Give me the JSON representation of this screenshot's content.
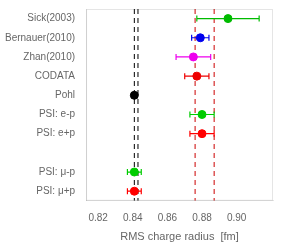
{
  "chart_data": {
    "type": "scatter",
    "orientation": "horizontal",
    "categories": [
      "Sick(2003)",
      "Bernauer(2010)",
      "Zhan(2010)",
      "CODATA",
      "Pohl",
      "PSI: e-p",
      "PSI: e+p",
      null,
      "PSI: μ-p",
      "PSI: μ+p"
    ],
    "values": [
      0.895,
      0.879,
      0.875,
      0.877,
      0.8409,
      0.88,
      0.88,
      null,
      0.8409,
      0.8409
    ],
    "error_low": [
      0.018,
      0.005,
      0.01,
      0.007,
      0.0015,
      0.007,
      0.007,
      null,
      0.004,
      0.004
    ],
    "error_high": [
      0.018,
      0.005,
      0.01,
      0.007,
      0.0015,
      0.007,
      0.007,
      null,
      0.004,
      0.004
    ],
    "colors": [
      "#00bb00",
      "#0000ee",
      "#ee00ee",
      "#ee0000",
      "black",
      "#00cc00",
      "red",
      null,
      "#00cc00",
      "red"
    ],
    "reference_lines": [
      {
        "x": 0.8409,
        "color": "black",
        "line_style": "dashed"
      },
      {
        "x": 0.843,
        "color": "black",
        "line_style": "dashed"
      },
      {
        "x": 0.876,
        "color": "#cc0000",
        "line_style": "dashed"
      },
      {
        "x": 0.887,
        "color": "#cc0000",
        "line_style": "dashed"
      }
    ],
    "xlabel": "RMS charge radius  [fm]",
    "xlim": [
      0.813,
      0.921
    ],
    "xticks": [
      0.82,
      0.84,
      0.86,
      0.88,
      {
        "value": 0.9,
        "label": "0.90"
      }
    ],
    "grid": false
  }
}
